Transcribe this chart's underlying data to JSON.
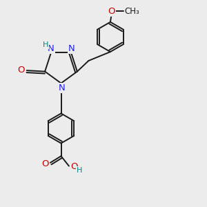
{
  "background": "#ececec",
  "bond_color": "#1a1a1a",
  "N_color": "#2222ee",
  "O_color": "#cc0000",
  "H_color": "#008888",
  "lw": 1.4,
  "fs": 9.5,
  "fs_small": 8.0,
  "xlim": [
    0,
    10
  ],
  "ylim": [
    0,
    10
  ],
  "figsize": [
    3.0,
    3.0
  ],
  "dpi": 100
}
